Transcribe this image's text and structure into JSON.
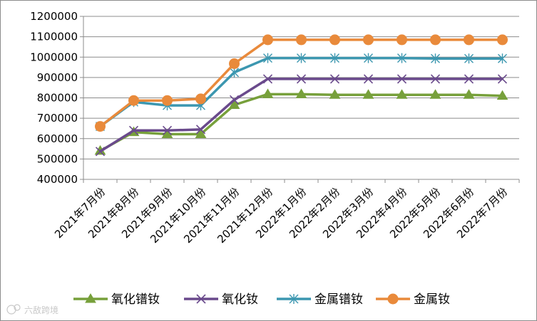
{
  "chart_data": {
    "type": "line",
    "title": "",
    "xlabel": "",
    "ylabel": "",
    "ylim": [
      400000,
      1200000
    ],
    "y_ticks": [
      "400000",
      "500000",
      "600000",
      "700000",
      "800000",
      "900000",
      "1000000",
      "1100000",
      "1200000"
    ],
    "grid": true,
    "legend_position": "bottom",
    "categories": [
      "2021年7月份",
      "2021年8月份",
      "2021年9月份",
      "2021年10月份",
      "2021年11月份",
      "2021年12月份",
      "2022年1月份",
      "2022年2月份",
      "2022年3月份",
      "2022年4月份",
      "2022年5月份",
      "2022年6月份",
      "2022年7月份"
    ],
    "series": [
      {
        "name": "氧化镨钕",
        "marker": "triangle",
        "color": "#77a03b",
        "values": [
          540000,
          632000,
          622000,
          622000,
          765000,
          818000,
          818000,
          815000,
          815000,
          815000,
          815000,
          815000,
          810000
        ]
      },
      {
        "name": "氧化钕",
        "marker": "x",
        "color": "#6a4a8c",
        "values": [
          537000,
          640000,
          640000,
          645000,
          790000,
          893000,
          893000,
          893000,
          893000,
          893000,
          893000,
          893000,
          893000
        ]
      },
      {
        "name": "金属镨钕",
        "marker": "star",
        "color": "#3c97b0",
        "values": [
          660000,
          780000,
          763000,
          763000,
          925000,
          995000,
          995000,
          995000,
          995000,
          995000,
          993000,
          993000,
          993000
        ]
      },
      {
        "name": "金属钕",
        "marker": "circle",
        "color": "#e98a3b",
        "values": [
          660000,
          787000,
          787000,
          795000,
          968000,
          1085000,
          1085000,
          1085000,
          1085000,
          1085000,
          1085000,
          1085000,
          1085000
        ]
      }
    ]
  },
  "watermark": {
    "text": "六敌跨境"
  }
}
